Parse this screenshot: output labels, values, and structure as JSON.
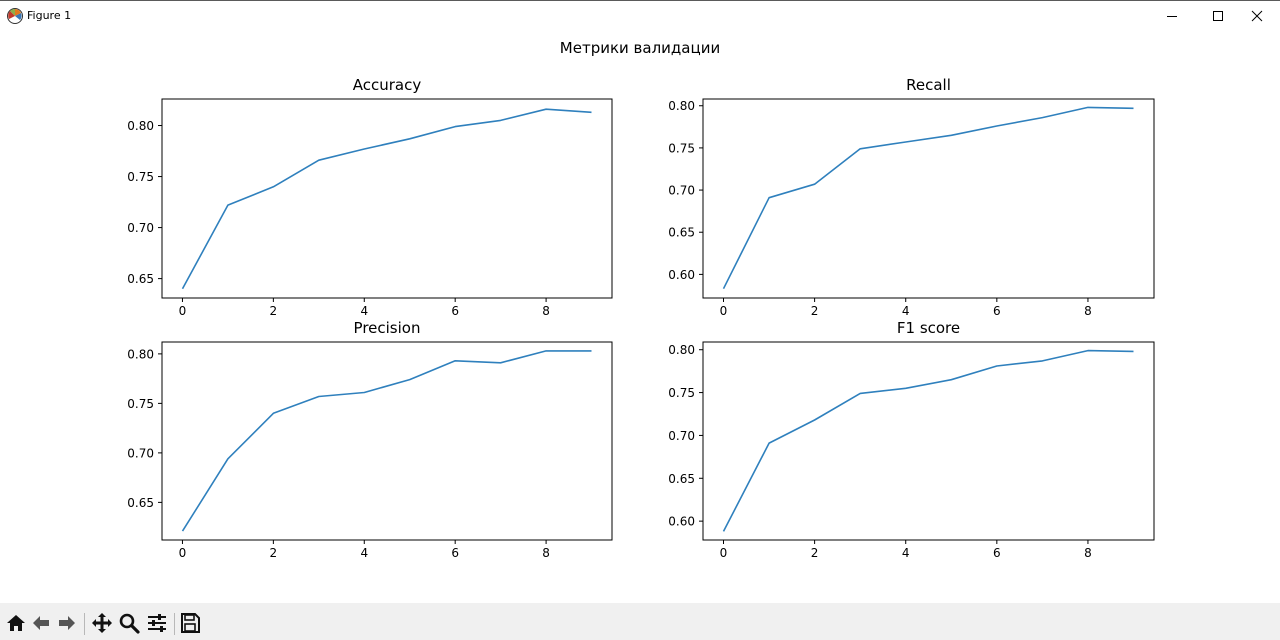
{
  "window": {
    "title": "Figure 1"
  },
  "figure": {
    "suptitle": "Метрики валидации"
  },
  "toolbar": {
    "buttons": [
      "home-icon",
      "back-arrow-icon",
      "forward-arrow-icon",
      "pan-move-icon",
      "zoom-magnifier-icon",
      "configure-subplots-icon",
      "save-floppy-icon"
    ]
  },
  "colors": {
    "line": "#2f80bd",
    "axes": "#000000",
    "toolbar_bg": "#f0f0f0"
  },
  "chart_data": [
    {
      "type": "line",
      "title": "Accuracy",
      "x": [
        0,
        1,
        2,
        3,
        4,
        5,
        6,
        7,
        8,
        9
      ],
      "series": [
        {
          "values": [
            0.64,
            0.722,
            0.74,
            0.766,
            0.777,
            0.787,
            0.799,
            0.805,
            0.816,
            0.813
          ]
        }
      ],
      "xticks": [
        "0",
        "2",
        "4",
        "6",
        "8"
      ],
      "yticks": [
        "0.65",
        "0.70",
        "0.75",
        "0.80"
      ],
      "xlim": [
        -0.45,
        9.45
      ],
      "ylim": [
        0.631,
        0.826
      ],
      "grid": false
    },
    {
      "type": "line",
      "title": "Recall",
      "x": [
        0,
        1,
        2,
        3,
        4,
        5,
        6,
        7,
        8,
        9
      ],
      "series": [
        {
          "values": [
            0.583,
            0.691,
            0.707,
            0.749,
            0.757,
            0.765,
            0.776,
            0.786,
            0.798,
            0.797
          ]
        }
      ],
      "xticks": [
        "0",
        "2",
        "4",
        "6",
        "8"
      ],
      "yticks": [
        "0.60",
        "0.65",
        "0.70",
        "0.75",
        "0.80"
      ],
      "xlim": [
        -0.45,
        9.45
      ],
      "ylim": [
        0.572,
        0.808
      ],
      "grid": false
    },
    {
      "type": "line",
      "title": "Precision",
      "x": [
        0,
        1,
        2,
        3,
        4,
        5,
        6,
        7,
        8,
        9
      ],
      "series": [
        {
          "values": [
            0.621,
            0.694,
            0.74,
            0.757,
            0.761,
            0.774,
            0.793,
            0.791,
            0.803,
            0.803
          ]
        }
      ],
      "xticks": [
        "0",
        "2",
        "4",
        "6",
        "8"
      ],
      "yticks": [
        "0.65",
        "0.70",
        "0.75",
        "0.80"
      ],
      "xlim": [
        -0.45,
        9.45
      ],
      "ylim": [
        0.612,
        0.812
      ],
      "grid": false
    },
    {
      "type": "line",
      "title": "F1 score",
      "x": [
        0,
        1,
        2,
        3,
        4,
        5,
        6,
        7,
        8,
        9
      ],
      "series": [
        {
          "values": [
            0.588,
            0.691,
            0.718,
            0.749,
            0.755,
            0.765,
            0.781,
            0.787,
            0.799,
            0.798
          ]
        }
      ],
      "xticks": [
        "0",
        "2",
        "4",
        "6",
        "8"
      ],
      "yticks": [
        "0.60",
        "0.65",
        "0.70",
        "0.75",
        "0.80"
      ],
      "xlim": [
        -0.45,
        9.45
      ],
      "ylim": [
        0.578,
        0.809
      ],
      "grid": false
    }
  ]
}
